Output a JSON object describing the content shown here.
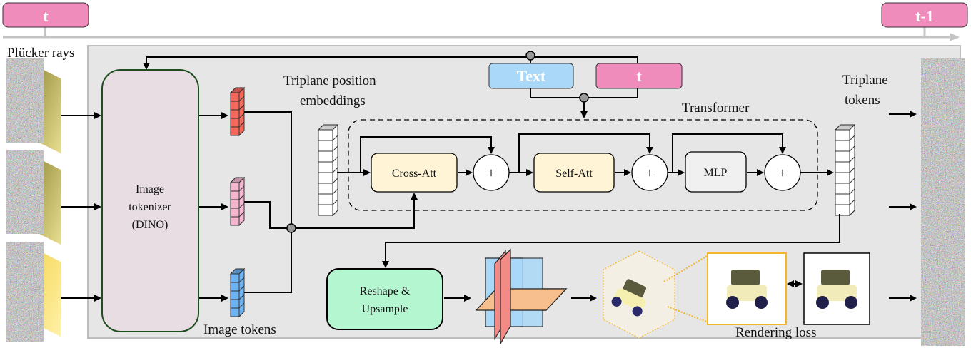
{
  "timeline": {
    "start_label": "t",
    "end_label": "t-1"
  },
  "inputs": {
    "label": "Plücker rays"
  },
  "tokenizer": {
    "line1": "Image",
    "line2": "tokenizer",
    "line3": "(DINO)"
  },
  "image_tokens": {
    "label": "Image tokens"
  },
  "triplane_pos": {
    "line1": "Triplane position",
    "line2": "embeddings"
  },
  "conditions": {
    "text_label": "Text",
    "t_label": "t"
  },
  "transformer": {
    "label": "Transformer",
    "cross_att": "Cross-Att",
    "self_att": "Self-Att",
    "mlp": "MLP",
    "add_symbol": "+"
  },
  "triplane_tokens": {
    "line1": "Triplane",
    "line2": "tokens"
  },
  "reshape": {
    "line1": "Reshape &",
    "line2": "Upsample"
  },
  "rendering": {
    "label": "Rendering loss"
  },
  "colors": {
    "timestep": "#f08cbb",
    "text": "#a9d8f8",
    "tokenizer": "#e8dde2",
    "attention": "#fff5d6",
    "reshape": "#b4f6d0",
    "token_red": "#f3685a",
    "token_pink": "#f4b6cf",
    "token_blue": "#6fb2f0",
    "panel": "#e6e6e6"
  }
}
